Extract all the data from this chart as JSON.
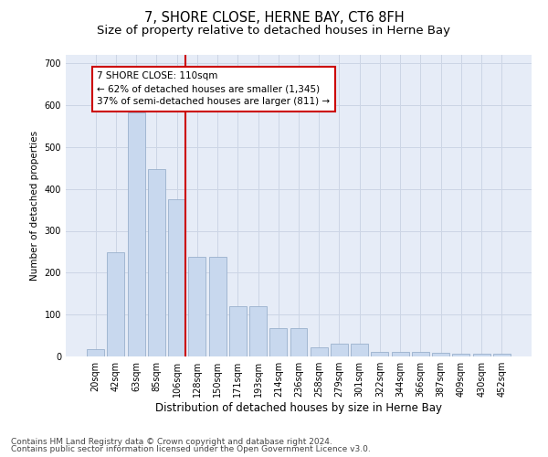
{
  "title": "7, SHORE CLOSE, HERNE BAY, CT6 8FH",
  "subtitle": "Size of property relative to detached houses in Herne Bay",
  "xlabel": "Distribution of detached houses by size in Herne Bay",
  "ylabel": "Number of detached properties",
  "categories": [
    "20sqm",
    "42sqm",
    "63sqm",
    "85sqm",
    "106sqm",
    "128sqm",
    "150sqm",
    "171sqm",
    "193sqm",
    "214sqm",
    "236sqm",
    "258sqm",
    "279sqm",
    "301sqm",
    "322sqm",
    "344sqm",
    "366sqm",
    "387sqm",
    "409sqm",
    "430sqm",
    "452sqm"
  ],
  "values": [
    17,
    248,
    583,
    447,
    375,
    237,
    237,
    120,
    120,
    68,
    68,
    22,
    30,
    30,
    12,
    10,
    10,
    8,
    7,
    7,
    6
  ],
  "bar_color": "#c8d8ee",
  "bar_edge_color": "#9ab0cc",
  "property_line_index": 4,
  "property_line_color": "#cc0000",
  "annotation_line1": "7 SHORE CLOSE: 110sqm",
  "annotation_line2": "← 62% of detached houses are smaller (1,345)",
  "annotation_line3": "37% of semi-detached houses are larger (811) →",
  "annotation_box_color": "#cc0000",
  "ylim": [
    0,
    720
  ],
  "yticks": [
    0,
    100,
    200,
    300,
    400,
    500,
    600,
    700
  ],
  "grid_color": "#ccd5e5",
  "bg_color": "#e6ecf7",
  "footer_line1": "Contains HM Land Registry data © Crown copyright and database right 2024.",
  "footer_line2": "Contains public sector information licensed under the Open Government Licence v3.0.",
  "title_fontsize": 10.5,
  "subtitle_fontsize": 9.5,
  "xlabel_fontsize": 8.5,
  "ylabel_fontsize": 7.5,
  "tick_fontsize": 7,
  "annotation_fontsize": 7.5,
  "footer_fontsize": 6.5
}
